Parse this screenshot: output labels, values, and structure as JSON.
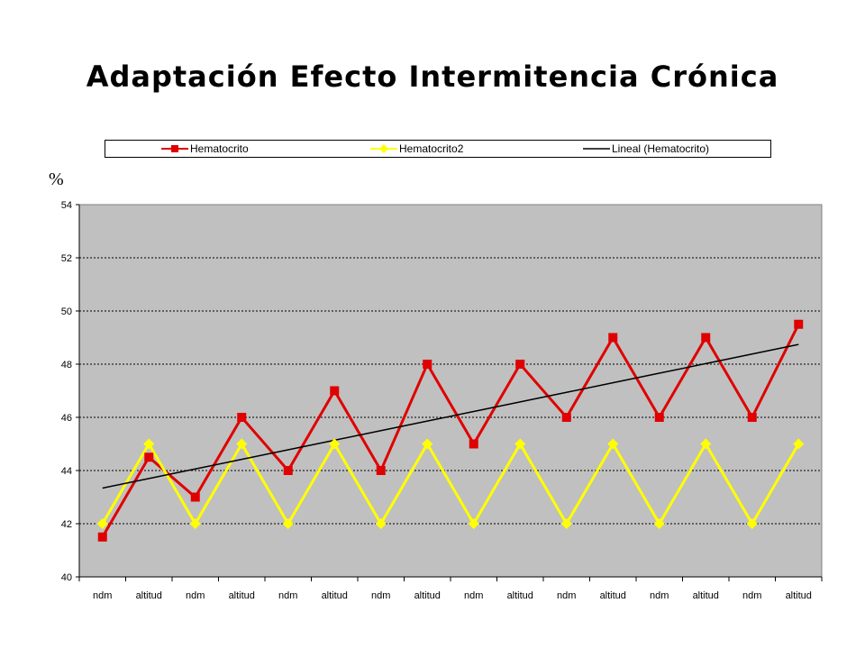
{
  "chart_data": {
    "type": "line",
    "title": "Adaptación Efecto Intermitencia Crónica",
    "ylabel": "%",
    "xlabel": "",
    "ylim": [
      40,
      54
    ],
    "yticks": [
      40,
      42,
      44,
      46,
      48,
      50,
      52,
      54
    ],
    "grid": true,
    "legend_position": "top",
    "plot_background": "#c0c0c0",
    "categories": [
      "ndm",
      "altitud",
      "ndm",
      "altitud",
      "ndm",
      "altitud",
      "ndm",
      "altitud",
      "ndm",
      "altitud",
      "ndm",
      "altitud",
      "ndm",
      "altitud",
      "ndm",
      "altitud"
    ],
    "series": [
      {
        "name": "Hematocrito",
        "color": "#e00000",
        "marker": "square",
        "values": [
          41.5,
          44.5,
          43,
          46,
          44,
          47,
          44,
          48,
          45,
          48,
          46,
          49,
          46,
          49,
          46,
          49.5
        ]
      },
      {
        "name": "Hematocrito2",
        "color": "#ffff00",
        "marker": "diamond",
        "values": [
          42,
          45,
          42,
          45,
          42,
          45,
          42,
          45,
          42,
          45,
          42,
          45,
          42,
          45,
          42,
          45
        ]
      },
      {
        "name": "Lineal (Hematocrito)",
        "color": "#000000",
        "marker": "none",
        "type": "trendline",
        "values": [
          43.34,
          43.7,
          44.06,
          44.42,
          44.78,
          45.14,
          45.5,
          45.86,
          46.22,
          46.58,
          46.94,
          47.3,
          47.66,
          48.02,
          48.38,
          48.74
        ]
      }
    ]
  }
}
